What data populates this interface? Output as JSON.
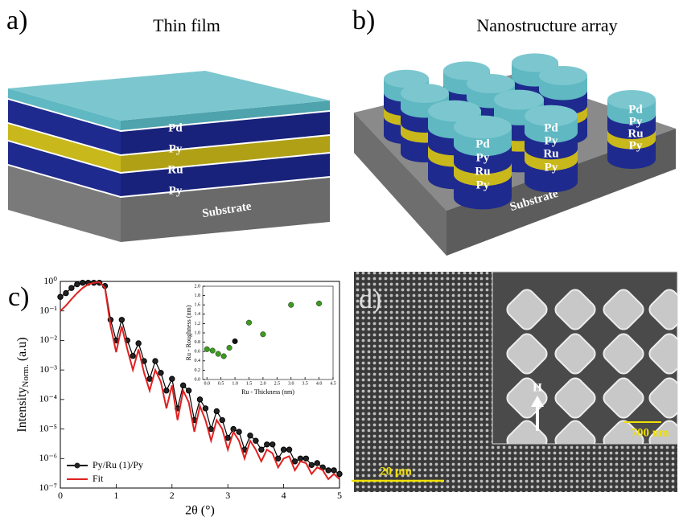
{
  "panels": {
    "a": {
      "label": "a)",
      "title": "Thin film",
      "layers": [
        "Pd",
        "Py",
        "Ru",
        "Py"
      ],
      "substrate": "Substrate"
    },
    "b": {
      "label": "b)",
      "title": "Nanostructure array",
      "pillar_labels": [
        [
          "Pd",
          "Py",
          "Ru",
          "Py"
        ],
        [
          "Pd",
          "Py",
          "Ru",
          "Py"
        ],
        [
          "Pd",
          "Py",
          "Ru",
          "Py"
        ]
      ],
      "substrate": "Substrate"
    },
    "c": {
      "label": "c)"
    },
    "d": {
      "label": "d)",
      "field": "H",
      "inset_scale": "700 nm",
      "scale": "20 μm"
    }
  },
  "chart_data": [
    {
      "type": "line",
      "xlabel": "2θ (°)",
      "ylabel": "Intensity",
      "ylabel_subscript": "Norm.",
      "ylabel_unit": "(a.u)",
      "log_y": true,
      "legend": "lower left",
      "x": [
        0,
        0.1,
        0.2,
        0.3,
        0.4,
        0.5,
        0.6,
        0.7,
        0.8,
        0.9,
        1.0,
        1.1,
        1.2,
        1.3,
        1.4,
        1.5,
        1.6,
        1.7,
        1.8,
        1.9,
        2.0,
        2.1,
        2.2,
        2.3,
        2.4,
        2.5,
        2.6,
        2.7,
        2.8,
        2.9,
        3.0,
        3.1,
        3.2,
        3.3,
        3.4,
        3.5,
        3.6,
        3.7,
        3.8,
        3.9,
        4.0,
        4.1,
        4.2,
        4.3,
        4.4,
        4.5,
        4.6,
        4.7,
        4.8,
        4.9,
        5.0
      ],
      "series": [
        {
          "name": "Py/Ru (1)/Py",
          "color": "#000000",
          "markers": true,
          "values": [
            0.3,
            0.4,
            0.6,
            0.8,
            0.9,
            0.9,
            0.9,
            0.9,
            0.7,
            0.05,
            0.01,
            0.05,
            0.01,
            0.003,
            0.008,
            0.002,
            0.0005,
            0.002,
            0.0008,
            0.0002,
            0.0005,
            5e-05,
            0.0003,
            0.0002,
            2e-05,
            0.0001,
            5e-05,
            1e-05,
            4e-05,
            2e-05,
            5e-06,
            1e-05,
            8e-06,
            2e-06,
            6e-06,
            4e-06,
            2e-06,
            3e-06,
            3e-06,
            1e-06,
            2e-06,
            2e-06,
            8e-07,
            1e-06,
            1e-06,
            6e-07,
            7e-07,
            5e-07,
            4e-07,
            4e-07,
            3e-07
          ]
        },
        {
          "name": "Fit",
          "color": "#e02020",
          "markers": false,
          "values": [
            0.1,
            0.15,
            0.25,
            0.4,
            0.6,
            0.8,
            0.9,
            0.95,
            0.6,
            0.03,
            0.004,
            0.03,
            0.005,
            0.001,
            0.005,
            0.0008,
            0.0002,
            0.001,
            0.0004,
            5e-05,
            0.0003,
            2e-05,
            0.0002,
            8e-05,
            8e-06,
            6e-05,
            2e-05,
            4e-06,
            2e-05,
            1e-05,
            2e-06,
            8e-06,
            4e-06,
            1e-06,
            4e-06,
            2e-06,
            8e-07,
            2e-06,
            1.5e-06,
            5e-07,
            1e-06,
            1.2e-06,
            4e-07,
            8e-07,
            7e-07,
            3e-07,
            5e-07,
            4e-07,
            2e-07,
            3e-07,
            2e-07
          ]
        }
      ],
      "xlim": [
        0,
        5
      ],
      "xticks": [
        0,
        1,
        2,
        3,
        4,
        5
      ],
      "ylim": [
        1e-07,
        1
      ],
      "yticks": [
        {
          "value": 1e-07,
          "label": "10⁻⁷"
        },
        {
          "value": 1e-06,
          "label": "10⁻⁶"
        },
        {
          "value": 1e-05,
          "label": "10⁻⁵"
        },
        {
          "value": 0.0001,
          "label": "10⁻⁴"
        },
        {
          "value": 0.001,
          "label": "10⁻³"
        },
        {
          "value": 0.01,
          "label": "10⁻²"
        },
        {
          "value": 0.1,
          "label": "10⁻¹"
        },
        {
          "value": 1,
          "label": "10⁰"
        }
      ]
    },
    {
      "type": "scatter",
      "xlabel": "Ru - Thickness  (nm)",
      "ylabel": "Ru - Roughness  (nm)",
      "series": [
        {
          "color": "#3c9a1e",
          "x": [
            0,
            0.2,
            0.4,
            0.6,
            0.8,
            1.5,
            2.0,
            3.0,
            4.0
          ],
          "values": [
            0.65,
            0.62,
            0.55,
            0.5,
            0.68,
            1.22,
            0.97,
            1.6,
            1.63
          ]
        },
        {
          "color": "#111111",
          "x": [
            1.0
          ],
          "values": [
            0.82
          ]
        }
      ],
      "xlim": [
        -0.15,
        4.5
      ],
      "xticks": [
        {
          "value": 0,
          "label": "0.0"
        },
        0.5,
        {
          "value": 1,
          "label": "1.0"
        },
        1.5,
        {
          "value": 2,
          "label": "2.0"
        },
        2.5,
        {
          "value": 3,
          "label": "3.0"
        },
        3.5,
        {
          "value": 4,
          "label": "4.0"
        },
        4.5
      ],
      "ylim": [
        0,
        2
      ],
      "yticks": [
        {
          "value": 0,
          "label": "0.0"
        },
        0.2,
        0.4,
        0.6,
        0.8,
        {
          "value": 1,
          "label": "1.0"
        },
        1.2,
        1.4,
        1.6,
        1.8,
        {
          "value": 2,
          "label": "2.0"
        }
      ]
    }
  ]
}
